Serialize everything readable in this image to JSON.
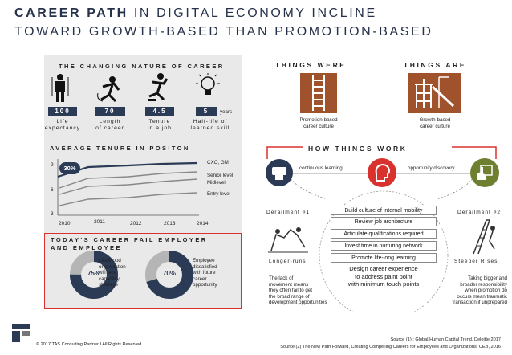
{
  "title": {
    "line1_bold": "CAREER PATH",
    "line1_rest": " IN DIGITAL ECONOMY INCLINE",
    "line2": "TOWARD GROWTH-BASED THAN PROMOTION-BASED"
  },
  "nature": {
    "heading": "THE CHANGING NATURE OF CAREER",
    "unit": "years",
    "stats": [
      {
        "value": "100",
        "label1": "Life",
        "label2": "expectancy",
        "icon": "person-icon"
      },
      {
        "value": "70",
        "label1": "Length",
        "label2": "of career",
        "icon": "running-person-icon"
      },
      {
        "value": "4.5",
        "label1": "Tenure",
        "label2": "in a job",
        "icon": "jumping-person-icon"
      },
      {
        "value": "5",
        "label1": "Half-life of",
        "label2": "learned skill",
        "icon": "lightbulb-icon"
      }
    ]
  },
  "tenure": {
    "heading": "AVERAGE TENURE IN POSITON",
    "badge": "30%",
    "y_ticks": [
      "9",
      "6",
      "3"
    ],
    "x_ticks": [
      "2010",
      "2011",
      "2012",
      "2013",
      "2014"
    ],
    "series_labels": [
      "CXO, GM",
      "Senior level",
      "Midlevel",
      "Entry level"
    ]
  },
  "failure": {
    "heading1": "TODAY'S CAREER FAIL EMPLOYER",
    "heading2": "AND EMPLOYEE",
    "donut1": {
      "value": "75%",
      "fraction": 0.75,
      "text": [
        "Likelihood",
        "organization",
        "will face",
        "capability",
        "shortage"
      ]
    },
    "donut2": {
      "value": "70%",
      "fraction": 0.7,
      "text": [
        "Employee",
        "dissatisfied",
        "with future",
        "career",
        "opportunity"
      ]
    }
  },
  "things_were": {
    "heading": "THINGS WERE",
    "caption1": "Promotion-based",
    "caption2": "career culture",
    "icon": "ladder-icon"
  },
  "things_are": {
    "heading": "THINGS ARE",
    "caption1": "Growth-based",
    "caption2": "career culture",
    "icon": "jungle-gym-icon"
  },
  "how": {
    "heading": "HOW THINGS WORK",
    "left_label": "continuous learning",
    "right_label": "opportunity discovery",
    "items": [
      "Build culture of internal mobility",
      "Review job architecture",
      "Articulate qualifications required",
      "Invest time in nurturing network",
      "Promote life-long learning"
    ],
    "design1": "Design career experience",
    "design2": "to address paint point",
    "design3": "with minimum touch points",
    "derail1": {
      "title": "Derailment #1",
      "subtitle": "Longer-runs",
      "text": [
        "The lack of",
        "movement means",
        "they often fail to get",
        "the broad range of",
        "development opportunities"
      ]
    },
    "derail2": {
      "title": "Derailment #2",
      "subtitle": "Steeper Rises",
      "text": [
        "Taking bigger and",
        "broader responsibility",
        "when promotion do",
        "occurs mean traumatic",
        "transaction if unprepared"
      ]
    }
  },
  "colors": {
    "navy": "#2b3a55",
    "red": "#d9322e",
    "brown": "#a0522d"
  },
  "footer": {
    "copyright": "© 2017 TAS Consulting Partner  I  All Rights Reserved",
    "source1": "Source (1) : Global Human Capital Trend, Deloitte 2017",
    "source2": "Source (2) The New Path Forward, Creating Compelling Careers for Employees and Organizations, CEB, 2016"
  }
}
